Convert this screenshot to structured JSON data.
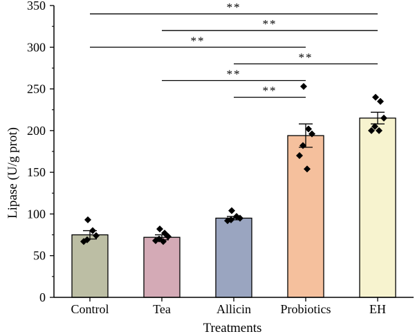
{
  "chart_data": {
    "type": "bar",
    "xlabel": "Treatments",
    "ylabel": "Lipase (U/g prot)",
    "ylim": [
      0,
      350
    ],
    "yticks": [
      0,
      50,
      100,
      150,
      200,
      250,
      300,
      350
    ],
    "categories": [
      "Control",
      "Tea",
      "Allicin",
      "Probiotics",
      "EH"
    ],
    "values": [
      75,
      72,
      95,
      194,
      215
    ],
    "errors": [
      5,
      3,
      2,
      14,
      7
    ],
    "colors": [
      "#bcbea4",
      "#d4aab6",
      "#9aa5c0",
      "#f5c09d",
      "#f7f3cf"
    ],
    "points": [
      [
        93,
        80,
        74,
        69,
        67
      ],
      [
        82,
        77,
        73,
        70,
        68,
        67
      ],
      [
        104,
        97,
        95,
        93,
        92
      ],
      [
        253,
        202,
        196,
        182,
        170,
        154
      ],
      [
        240,
        235,
        215,
        205,
        200,
        200
      ]
    ],
    "significance": [
      {
        "from": 0,
        "to": 4,
        "y": 340,
        "label": "**"
      },
      {
        "from": 1,
        "to": 4,
        "y": 320,
        "label": "**"
      },
      {
        "from": 0,
        "to": 3,
        "y": 300,
        "label": "**"
      },
      {
        "from": 2,
        "to": 4,
        "y": 280,
        "label": "**"
      },
      {
        "from": 1,
        "to": 3,
        "y": 260,
        "label": "**"
      },
      {
        "from": 2,
        "to": 3,
        "y": 240,
        "label": "**"
      }
    ]
  }
}
